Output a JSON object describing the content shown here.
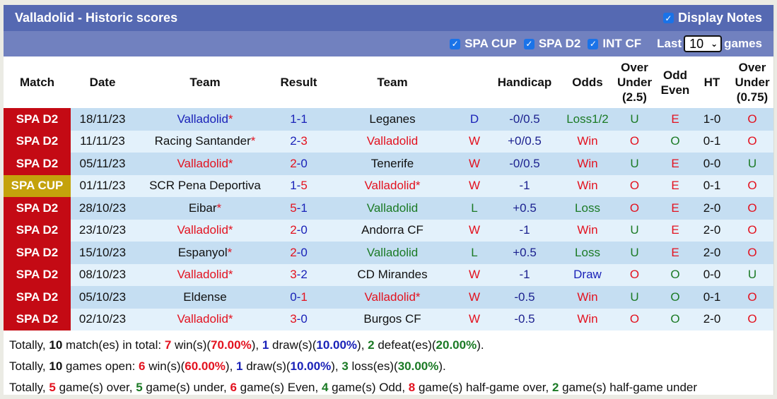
{
  "header": {
    "title": "Valladolid - Historic scores",
    "display_notes_label": "Display Notes",
    "display_notes_checked": true
  },
  "filters": {
    "items": [
      {
        "label": "SPA CUP",
        "checked": true
      },
      {
        "label": "SPA D2",
        "checked": true
      },
      {
        "label": "INT CF",
        "checked": true
      }
    ],
    "last_label": "Last",
    "last_value": "10",
    "games_label": "games"
  },
  "columns": {
    "match": "Match",
    "date": "Date",
    "team_home": "Team",
    "result": "Result",
    "team_away": "Team",
    "outcome": "",
    "handicap": "Handicap",
    "odds": "Odds",
    "over_under_25": [
      "Over",
      "Under",
      "(2.5)"
    ],
    "odd_even": [
      "Odd",
      "Even"
    ],
    "ht": "HT",
    "over_under_075": [
      "Over",
      "Under",
      "(0.75)"
    ]
  },
  "colors": {
    "spa_d2_badge": "#c40a14",
    "spa_cup_badge": "#c4a20c",
    "title_bar": "#5569b2",
    "sub_bar": "#7181bf",
    "row_odd": "#c5def2",
    "row_even": "#e3f1fb",
    "red": "#e3121f",
    "blue": "#1a22b8",
    "green": "#1b7a25"
  },
  "rows": [
    {
      "league": "SPA D2",
      "date": "18/11/23",
      "home": "Valladolid",
      "home_star": "*",
      "home_color": "blue",
      "score_home": "1",
      "score_home_color": "blue",
      "score_away": "1",
      "score_away_color": "blue",
      "away": "Leganes",
      "away_star": "",
      "away_color": "dark",
      "outcome": "D",
      "outcome_color": "blue",
      "handicap": "-0/0.5",
      "odds": "Loss1/2",
      "odds_color": "green",
      "ou": "U",
      "ou_color": "green",
      "oe": "E",
      "oe_color": "red",
      "ht": "1-0",
      "ou075": "O",
      "ou075_color": "red"
    },
    {
      "league": "SPA D2",
      "date": "11/11/23",
      "home": "Racing Santander",
      "home_star": "*",
      "home_color": "dark",
      "score_home": "2",
      "score_home_color": "blue",
      "score_away": "3",
      "score_away_color": "red",
      "away": "Valladolid",
      "away_star": "",
      "away_color": "red",
      "outcome": "W",
      "outcome_color": "red",
      "handicap": "+0/0.5",
      "odds": "Win",
      "odds_color": "red",
      "ou": "O",
      "ou_color": "red",
      "oe": "O",
      "oe_color": "green",
      "ht": "0-1",
      "ou075": "O",
      "ou075_color": "red"
    },
    {
      "league": "SPA D2",
      "date": "05/11/23",
      "home": "Valladolid",
      "home_star": "*",
      "home_color": "red",
      "score_home": "2",
      "score_home_color": "red",
      "score_away": "0",
      "score_away_color": "blue",
      "away": "Tenerife",
      "away_star": "",
      "away_color": "dark",
      "outcome": "W",
      "outcome_color": "red",
      "handicap": "-0/0.5",
      "odds": "Win",
      "odds_color": "red",
      "ou": "U",
      "ou_color": "green",
      "oe": "E",
      "oe_color": "red",
      "ht": "0-0",
      "ou075": "U",
      "ou075_color": "green"
    },
    {
      "league": "SPA CUP",
      "date": "01/11/23",
      "home": "SCR Pena Deportiva",
      "home_star": "",
      "home_color": "dark",
      "score_home": "1",
      "score_home_color": "blue",
      "score_away": "5",
      "score_away_color": "red",
      "away": "Valladolid",
      "away_star": "*",
      "away_color": "red",
      "outcome": "W",
      "outcome_color": "red",
      "handicap": "-1",
      "odds": "Win",
      "odds_color": "red",
      "ou": "O",
      "ou_color": "red",
      "oe": "E",
      "oe_color": "red",
      "ht": "0-1",
      "ou075": "O",
      "ou075_color": "red"
    },
    {
      "league": "SPA D2",
      "date": "28/10/23",
      "home": "Eibar",
      "home_star": "*",
      "home_color": "dark",
      "score_home": "5",
      "score_home_color": "red",
      "score_away": "1",
      "score_away_color": "blue",
      "away": "Valladolid",
      "away_star": "",
      "away_color": "green",
      "outcome": "L",
      "outcome_color": "green",
      "handicap": "+0.5",
      "odds": "Loss",
      "odds_color": "green",
      "ou": "O",
      "ou_color": "red",
      "oe": "E",
      "oe_color": "red",
      "ht": "2-0",
      "ou075": "O",
      "ou075_color": "red"
    },
    {
      "league": "SPA D2",
      "date": "23/10/23",
      "home": "Valladolid",
      "home_star": "*",
      "home_color": "red",
      "score_home": "2",
      "score_home_color": "red",
      "score_away": "0",
      "score_away_color": "blue",
      "away": "Andorra CF",
      "away_star": "",
      "away_color": "dark",
      "outcome": "W",
      "outcome_color": "red",
      "handicap": "-1",
      "odds": "Win",
      "odds_color": "red",
      "ou": "U",
      "ou_color": "green",
      "oe": "E",
      "oe_color": "red",
      "ht": "2-0",
      "ou075": "O",
      "ou075_color": "red"
    },
    {
      "league": "SPA D2",
      "date": "15/10/23",
      "home": "Espanyol",
      "home_star": "*",
      "home_color": "dark",
      "score_home": "2",
      "score_home_color": "red",
      "score_away": "0",
      "score_away_color": "blue",
      "away": "Valladolid",
      "away_star": "",
      "away_color": "green",
      "outcome": "L",
      "outcome_color": "green",
      "handicap": "+0.5",
      "odds": "Loss",
      "odds_color": "green",
      "ou": "U",
      "ou_color": "green",
      "oe": "E",
      "oe_color": "red",
      "ht": "2-0",
      "ou075": "O",
      "ou075_color": "red"
    },
    {
      "league": "SPA D2",
      "date": "08/10/23",
      "home": "Valladolid",
      "home_star": "*",
      "home_color": "red",
      "score_home": "3",
      "score_home_color": "red",
      "score_away": "2",
      "score_away_color": "blue",
      "away": "CD Mirandes",
      "away_star": "",
      "away_color": "dark",
      "outcome": "W",
      "outcome_color": "red",
      "handicap": "-1",
      "odds": "Draw",
      "odds_color": "blue",
      "ou": "O",
      "ou_color": "red",
      "oe": "O",
      "oe_color": "green",
      "ht": "0-0",
      "ou075": "U",
      "ou075_color": "green"
    },
    {
      "league": "SPA D2",
      "date": "05/10/23",
      "home": "Eldense",
      "home_star": "",
      "home_color": "dark",
      "score_home": "0",
      "score_home_color": "blue",
      "score_away": "1",
      "score_away_color": "red",
      "away": "Valladolid",
      "away_star": "*",
      "away_color": "red",
      "outcome": "W",
      "outcome_color": "red",
      "handicap": "-0.5",
      "odds": "Win",
      "odds_color": "red",
      "ou": "U",
      "ou_color": "green",
      "oe": "O",
      "oe_color": "green",
      "ht": "0-1",
      "ou075": "O",
      "ou075_color": "red"
    },
    {
      "league": "SPA D2",
      "date": "02/10/23",
      "home": "Valladolid",
      "home_star": "*",
      "home_color": "red",
      "score_home": "3",
      "score_home_color": "red",
      "score_away": "0",
      "score_away_color": "blue",
      "away": "Burgos CF",
      "away_star": "",
      "away_color": "dark",
      "outcome": "W",
      "outcome_color": "red",
      "handicap": "-0.5",
      "odds": "Win",
      "odds_color": "red",
      "ou": "O",
      "ou_color": "red",
      "oe": "O",
      "oe_color": "green",
      "ht": "2-0",
      "ou075": "O",
      "ou075_color": "red"
    }
  ],
  "summary": [
    [
      {
        "t": "Totally, "
      },
      {
        "b": "10",
        "c": "dark"
      },
      {
        "t": " match(es) in total: "
      },
      {
        "b": "7",
        "c": "red"
      },
      {
        "t": " win(s)("
      },
      {
        "b": "70.00%",
        "c": "red"
      },
      {
        "t": "), "
      },
      {
        "b": "1",
        "c": "blue"
      },
      {
        "t": " draw(s)("
      },
      {
        "b": "10.00%",
        "c": "blue"
      },
      {
        "t": "), "
      },
      {
        "b": "2",
        "c": "green"
      },
      {
        "t": " defeat(es)("
      },
      {
        "b": "20.00%",
        "c": "green"
      },
      {
        "t": ")."
      }
    ],
    [
      {
        "t": "Totally, "
      },
      {
        "b": "10",
        "c": "dark"
      },
      {
        "t": " games open: "
      },
      {
        "b": "6",
        "c": "red"
      },
      {
        "t": " win(s)("
      },
      {
        "b": "60.00%",
        "c": "red"
      },
      {
        "t": "), "
      },
      {
        "b": "1",
        "c": "blue"
      },
      {
        "t": " draw(s)("
      },
      {
        "b": "10.00%",
        "c": "blue"
      },
      {
        "t": "), "
      },
      {
        "b": "3",
        "c": "green"
      },
      {
        "t": " loss(es)("
      },
      {
        "b": "30.00%",
        "c": "green"
      },
      {
        "t": ")."
      }
    ],
    [
      {
        "t": "Totally, "
      },
      {
        "b": "5",
        "c": "red"
      },
      {
        "t": " game(s) over, "
      },
      {
        "b": "5",
        "c": "green"
      },
      {
        "t": " game(s) under, "
      },
      {
        "b": "6",
        "c": "red"
      },
      {
        "t": " game(s) Even, "
      },
      {
        "b": "4",
        "c": "green"
      },
      {
        "t": " game(s) Odd, "
      },
      {
        "b": "8",
        "c": "red"
      },
      {
        "t": " game(s) half-game over, "
      },
      {
        "b": "2",
        "c": "green"
      },
      {
        "t": " game(s) half-game under"
      }
    ]
  ]
}
